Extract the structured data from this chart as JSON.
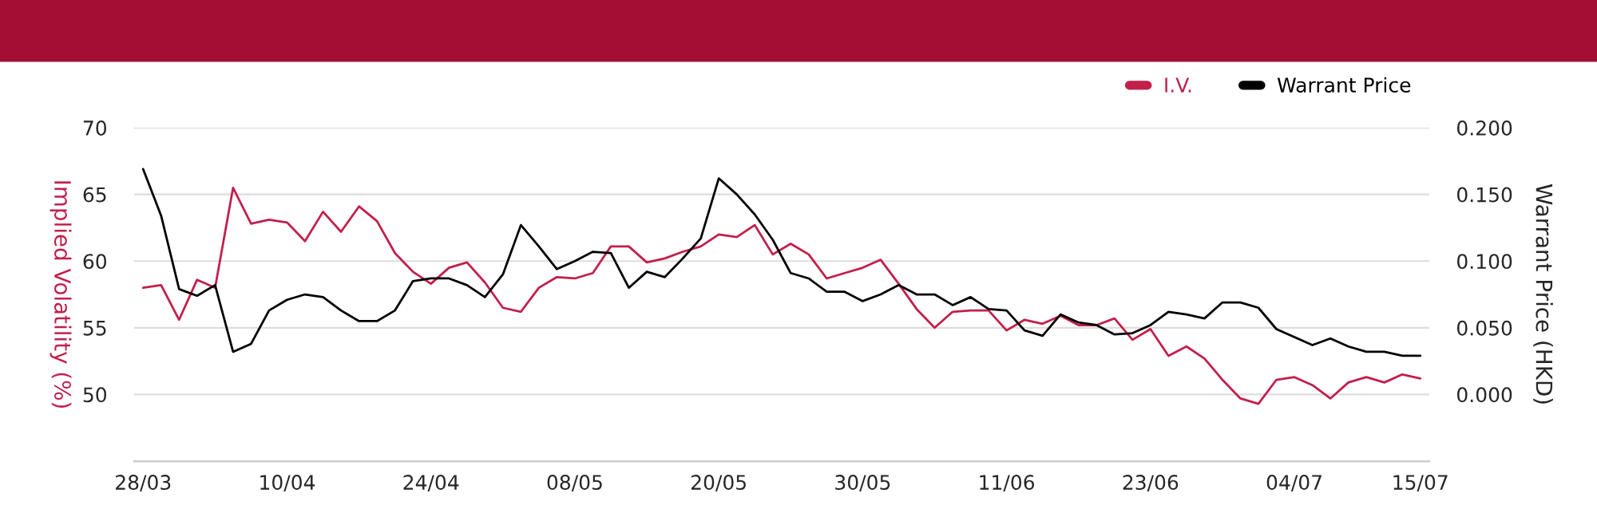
{
  "chart_data": {
    "type": "line",
    "xlabel": null,
    "ylabel": "Implied Volatility (%)",
    "y2label": "Warrant Price (HKD)",
    "categories": [
      "28/03",
      null,
      null,
      null,
      null,
      null,
      null,
      null,
      "10/04",
      null,
      null,
      null,
      null,
      null,
      null,
      null,
      "24/04",
      null,
      null,
      null,
      null,
      null,
      null,
      null,
      "08/05",
      null,
      null,
      null,
      null,
      null,
      null,
      null,
      "20/05",
      null,
      null,
      null,
      null,
      null,
      null,
      null,
      "30/05",
      null,
      null,
      null,
      null,
      null,
      null,
      null,
      "11/06",
      null,
      null,
      null,
      null,
      null,
      null,
      null,
      "23/06",
      null,
      null,
      null,
      null,
      null,
      null,
      null,
      "04/07",
      null,
      null,
      null,
      null,
      null,
      null,
      "15/07"
    ],
    "series": [
      {
        "name": "I.V.",
        "color": "#c21f4b",
        "values": [
          58.0,
          58.2,
          55.6,
          58.6,
          58.0,
          65.5,
          62.8,
          63.1,
          62.9,
          61.5,
          63.7,
          62.2,
          64.1,
          63.0,
          60.6,
          59.2,
          58.3,
          59.5,
          59.9,
          58.4,
          56.5,
          56.2,
          58.0,
          58.8,
          58.7,
          59.1,
          61.1,
          61.1,
          59.9,
          60.2,
          60.7,
          61.1,
          62.0,
          61.8,
          62.7,
          60.5,
          61.3,
          60.5,
          58.7,
          59.1,
          59.5,
          60.1,
          58.3,
          56.4,
          55.0,
          56.2,
          56.3,
          56.3,
          54.8,
          55.6,
          55.3,
          55.9,
          55.2,
          55.2,
          55.7,
          54.1,
          54.9,
          52.9,
          53.6,
          52.7,
          51.1,
          49.7,
          49.3,
          51.1,
          51.3,
          50.7,
          49.7,
          50.9,
          51.3,
          50.9,
          51.5,
          51.2
        ]
      },
      {
        "name": "Warrant Price",
        "color": "#000000",
        "axis": "y2",
        "values": [
          0.169,
          0.134,
          0.079,
          0.074,
          0.082,
          0.032,
          0.038,
          0.063,
          0.071,
          0.075,
          0.073,
          0.063,
          0.055,
          0.055,
          0.063,
          0.085,
          0.087,
          0.087,
          0.082,
          0.073,
          0.09,
          0.127,
          0.111,
          0.094,
          0.1,
          0.107,
          0.106,
          0.08,
          0.092,
          0.088,
          0.102,
          0.117,
          0.162,
          0.15,
          0.135,
          0.116,
          0.091,
          0.087,
          0.077,
          0.077,
          0.07,
          0.075,
          0.082,
          0.075,
          0.075,
          0.067,
          0.073,
          0.064,
          0.063,
          0.048,
          0.044,
          0.06,
          0.054,
          0.052,
          0.045,
          0.046,
          0.052,
          0.062,
          0.06,
          0.057,
          0.069,
          0.069,
          0.065,
          0.049,
          0.043,
          0.037,
          0.042,
          0.036,
          0.032,
          0.032,
          0.029,
          0.029
        ]
      }
    ],
    "ylim": [
      45,
      70
    ],
    "yticks": [
      50,
      55,
      60,
      65,
      70
    ],
    "y2lim": [
      -0.05,
      0.2
    ],
    "y2ticks": [
      {
        "value": 0,
        "label": "0.000"
      },
      {
        "value": 0.05,
        "label": "0.050"
      },
      {
        "value": 0.1,
        "label": "0.100"
      },
      {
        "value": 0.15,
        "label": "0.150"
      },
      {
        "value": 0.2,
        "label": "0.200"
      }
    ],
    "grid": "y",
    "legend": "top right",
    "marker": "none",
    "line_style": "solid"
  }
}
